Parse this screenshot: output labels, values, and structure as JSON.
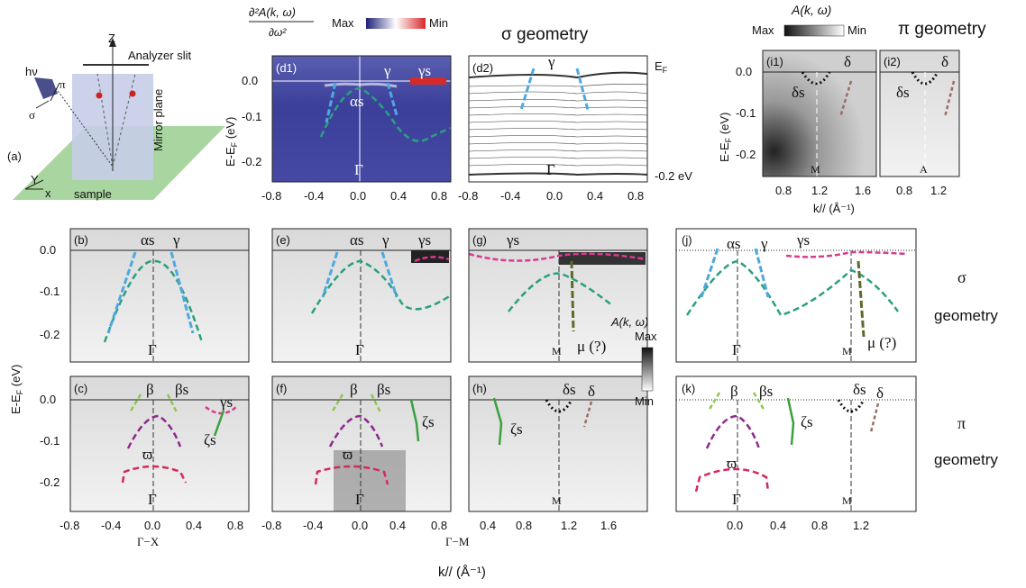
{
  "top": {
    "deriv_numer": "∂²A(k, ω)",
    "deriv_denom": "∂ω²",
    "deriv_max": "Max",
    "deriv_min": "Min",
    "sigma_title": "σ geometry",
    "akw_label": "A(k, ω)",
    "akw_max": "Max",
    "akw_min": "Min",
    "pi_title": "π geometry"
  },
  "schematic": {
    "z": "Z",
    "analyzer": "Analyzer slit",
    "hnu": "hν",
    "pi": "π",
    "sigma": "σ",
    "mirror": "Mirror plane",
    "panel": "(a)",
    "y": "Y",
    "x": "x",
    "sample": "sample"
  },
  "panels": {
    "d1": "(d1)",
    "d2": "(d2)",
    "i1": "(i1)",
    "i2": "(i2)",
    "b": "(b)",
    "e": "(e)",
    "g": "(g)",
    "j": "(j)",
    "c": "(c)",
    "f": "(f)",
    "h": "(h)",
    "k": "(k)"
  },
  "bands": {
    "gamma": "γ",
    "gamma_s": "γs",
    "alpha_s": "αs",
    "beta": "β",
    "beta_s": "βs",
    "delta": "δ",
    "delta_s": "δs",
    "zeta_s": "ζs",
    "varpi": "ϖ",
    "mu": "μ (?)"
  },
  "points": {
    "G": "Γ",
    "M": "M",
    "A": "A"
  },
  "labels": {
    "E_F": "E",
    "E_F_sub": "F",
    "minus02": "-0.2 eV",
    "ylabel": "E-E",
    "ylabel_sub": "F",
    "ylabel_unit": " (eV)",
    "kx_small": "k// (Å⁻¹)",
    "k_axis": "k// (Å⁻¹)",
    "gx": "Γ−X",
    "gm": "Γ−M",
    "akw_mid": "A(k, ω)",
    "mid_max": "Max",
    "mid_min": "Min",
    "sigma_right": "σ",
    "geometry": "geometry",
    "pi_right": "π",
    "geometry2": "geometry"
  },
  "ticks": {
    "y_d1": [
      "0.0",
      "-0.1",
      "-0.2"
    ],
    "y_i": [
      "0.0",
      "-0.1",
      "-0.2"
    ],
    "y_main": [
      "0.0",
      "-0.1",
      "-0.2"
    ],
    "x_d": [
      "-0.8",
      "-0.4",
      "0.0",
      "0.4",
      "0.8"
    ],
    "x_i": [
      "0.8",
      "1.2",
      "1.6"
    ],
    "x_c": [
      "-0.8",
      "-0.4",
      "0.0",
      "0.4",
      "0.8"
    ],
    "x_f": [
      "-0.8",
      "-0.4",
      "0.0",
      "0.4",
      "0.8"
    ],
    "x_h": [
      "0.4",
      "0.8",
      "1.2",
      "1.6"
    ],
    "x_k": [
      "0.0",
      "0.4",
      "0.8",
      "1.2"
    ]
  }
}
